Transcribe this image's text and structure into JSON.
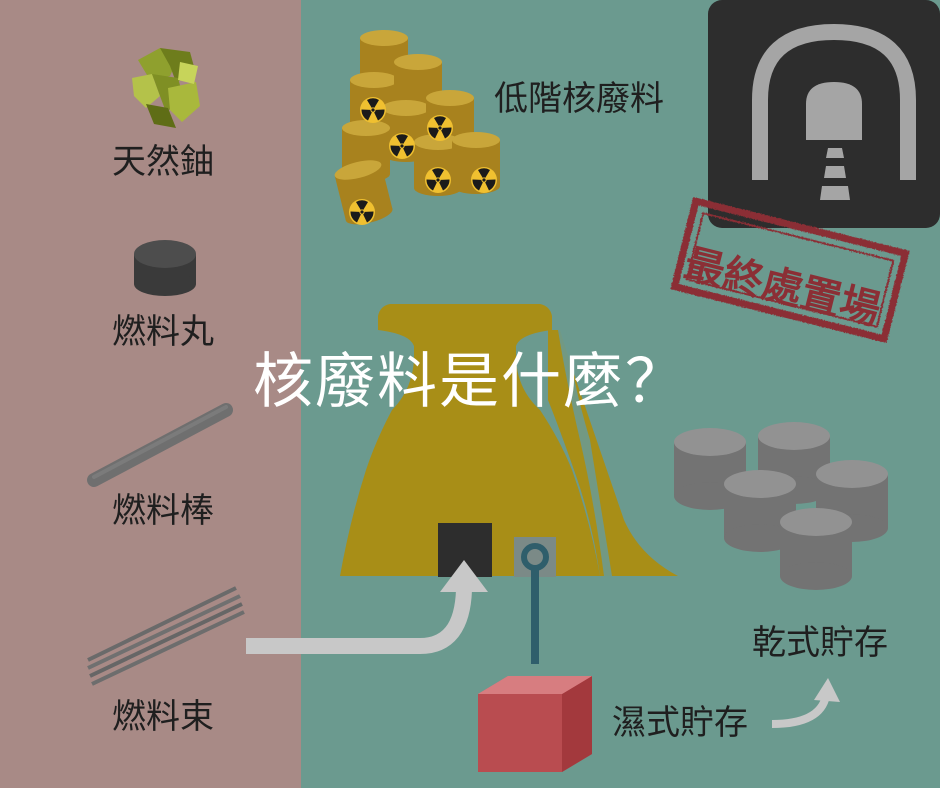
{
  "title": "核廢料是什麼？",
  "colors": {
    "left_panel": "#a88a86",
    "right_panel": "#6b9a8f",
    "tower": "#a88e17",
    "barrel": "#b38f26",
    "dark": "#2d2d2d",
    "gray_cyl": "#7e7e7e",
    "wet_box": "#b94c50",
    "stamp": "#8b2f35",
    "pipe": "#2f5e6b"
  },
  "left_items": [
    {
      "label": "天然鈾",
      "icon": "uranium-ore-icon"
    },
    {
      "label": "燃料丸",
      "icon": "fuel-pellet-icon"
    },
    {
      "label": "燃料棒",
      "icon": "fuel-rod-icon"
    },
    {
      "label": "燃料束",
      "icon": "fuel-bundle-icon"
    }
  ],
  "low_level_waste": {
    "label": "低階核廢料",
    "icon": "radioactive-barrels-icon"
  },
  "final_disposal": {
    "label": "最終處置場",
    "icon": "tunnel-icon"
  },
  "wet_storage": {
    "label": "濕式貯存",
    "icon": "storage-pool-icon"
  },
  "dry_storage": {
    "label": "乾式貯存",
    "icon": "dry-casks-icon"
  }
}
